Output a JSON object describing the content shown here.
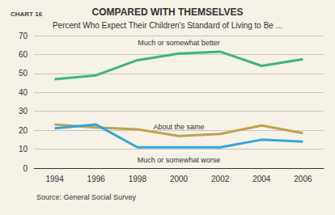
{
  "chart_data": {
    "type": "line",
    "label": "CHART 16",
    "title": "COMPARED WITH THEMSELVES",
    "subtitle": "Percent Who Expect Their Children's Standard of Living to Be ...",
    "source": "Source: General Social Survey",
    "categories": [
      "1994",
      "1996",
      "1998",
      "2000",
      "2002",
      "2004",
      "2006"
    ],
    "series": [
      {
        "name": "Much or somewhat better",
        "color": "#3db57a",
        "values": [
          47,
          49,
          57,
          60.5,
          61.5,
          54,
          57.5
        ]
      },
      {
        "name": "About the same",
        "color": "#bfa24e",
        "values": [
          23,
          21.5,
          20.5,
          17,
          18,
          22.5,
          18.5
        ]
      },
      {
        "name": "Much or somewhat worse",
        "color": "#34a6d9",
        "values": [
          21,
          23,
          11,
          11,
          11,
          15,
          14
        ]
      }
    ],
    "ylim": [
      0,
      70
    ],
    "yticks": [
      0,
      10,
      20,
      30,
      40,
      50,
      60,
      70
    ],
    "grid": true
  }
}
